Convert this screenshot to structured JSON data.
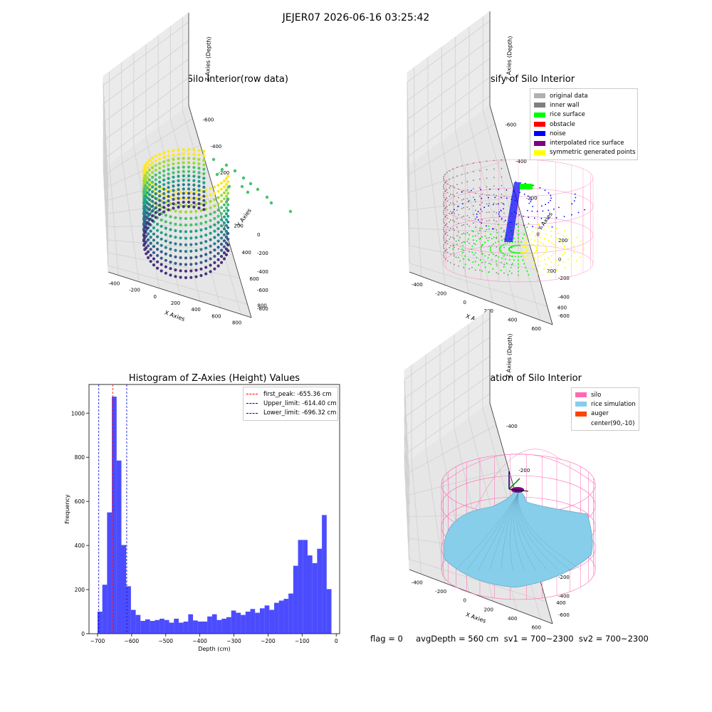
{
  "suptitle": "JEJER07 2026-06-16 03:25:42",
  "footer": "flag = 0     avgDepth = 560 cm  sv1 = 700~2300  sv2 = 700~2300",
  "colors": {
    "hist_bar": "#0000ff",
    "first_peak_line": "#ff0000",
    "limit_lines": "#0000cc",
    "silo_wire": "#ff69b4",
    "rice_surface": "#87ceeb",
    "auger": "#ff4500",
    "viridis": [
      "#fde725",
      "#a0da39",
      "#4ac16d",
      "#1fa187",
      "#277f8e",
      "#365c8d",
      "#46327e"
    ]
  },
  "chart_data": [
    {
      "type": "scatter",
      "projection": "3d",
      "title": "3D Plot of Silo Interior(row data)",
      "xlabel": "X Axies",
      "ylabel": "Y Axies",
      "zlabel": "Z Axies (Depth)",
      "x_ticks": [
        "-400",
        "-200",
        "0",
        "200",
        "400",
        "600",
        "800"
      ],
      "y_ticks": [
        "-600",
        "-400",
        "-200",
        "0",
        "200",
        "400",
        "600",
        "800"
      ],
      "z_ticks": [
        "0",
        "-200",
        "-400",
        "-600",
        "-800"
      ],
      "colormap": "viridis",
      "grid": true
    },
    {
      "type": "scatter",
      "projection": "3d",
      "title": "3D classify of Silo Interior",
      "xlabel": "X Axies",
      "ylabel": "Y Axies",
      "zlabel": "Z Axies (Depth)",
      "x_ticks": [
        "-400",
        "-200",
        "0",
        "200",
        "400",
        "600"
      ],
      "y_ticks": [
        "-600",
        "-400",
        "-200",
        "0",
        "200",
        "400"
      ],
      "z_ticks": [
        "200",
        "0",
        "-200",
        "-400",
        "-600"
      ],
      "legend": [
        {
          "label": "original data",
          "color": "#b0b0b0"
        },
        {
          "label": "inner wall",
          "color": "#808080"
        },
        {
          "label": "rice surface",
          "color": "#00ff00"
        },
        {
          "label": "obstacle",
          "color": "#ff0000"
        },
        {
          "label": "noise",
          "color": "#0000ff"
        },
        {
          "label": "interpolated rice surface",
          "color": "#800080"
        },
        {
          "label": "symmetric generated points",
          "color": "#ffff00"
        }
      ],
      "legend_position": "top-right",
      "grid": true
    },
    {
      "type": "bar",
      "title": "Histogram of Z-Axies (Height) Values",
      "xlabel": "Depth (cm)",
      "ylabel": "Frequency",
      "xlim": [
        -725,
        10
      ],
      "ylim": [
        0,
        1130
      ],
      "x_ticks": [
        -700,
        -600,
        -500,
        -400,
        -300,
        -200,
        -100,
        0
      ],
      "y_ticks": [
        0,
        200,
        400,
        600,
        800,
        1000
      ],
      "bin_edges": [
        -700,
        -686,
        -672,
        -658,
        -644,
        -630,
        -616,
        -602,
        -588,
        -574,
        -560,
        -546,
        -532,
        -518,
        -504,
        -490,
        -476,
        -462,
        -448,
        -434,
        -420,
        -406,
        -392,
        -378,
        -364,
        -350,
        -336,
        -322,
        -308,
        -294,
        -280,
        -266,
        -252,
        -238,
        -224,
        -210,
        -196,
        -182,
        -168,
        -154,
        -140,
        -126,
        -112,
        -98,
        -84,
        -70,
        -56,
        -42,
        -28,
        -14
      ],
      "values": [
        100,
        222,
        550,
        1075,
        785,
        402,
        215,
        108,
        85,
        58,
        65,
        58,
        62,
        68,
        62,
        50,
        68,
        50,
        55,
        88,
        60,
        55,
        55,
        78,
        88,
        62,
        68,
        75,
        105,
        95,
        85,
        100,
        112,
        95,
        115,
        128,
        108,
        140,
        150,
        158,
        182,
        308,
        425,
        425,
        355,
        320,
        385,
        538,
        202
      ],
      "reference_lines": [
        {
          "label": "first_peak: -655.36 cm",
          "x": -655.36,
          "color": "#ff0000"
        },
        {
          "label": "Upper_limit: -614.40 cm",
          "x": -614.4,
          "color": "#0000cc"
        },
        {
          "label": "Lower_limit: -696.32 cm",
          "x": -696.32,
          "color": "#0000cc"
        }
      ],
      "legend_position": "top-right",
      "grid": false
    },
    {
      "type": "surface",
      "projection": "3d",
      "title": "3D simulation of Silo Interior",
      "xlabel": "X Axies",
      "ylabel": "Y Axies",
      "zlabel": "Z Axies (Depth)",
      "x_ticks": [
        "-400",
        "-200",
        "0",
        "200",
        "400",
        "600"
      ],
      "y_ticks": [
        "-400",
        "-200",
        "0",
        "200",
        "400"
      ],
      "z_ticks": [
        "200",
        "0",
        "-200",
        "-400",
        "-600"
      ],
      "legend": [
        {
          "label": "silo",
          "color": "#ff69b4"
        },
        {
          "label": "rice simulation",
          "color": "#87ceeb"
        },
        {
          "label": "auger",
          "color": "#ff4500"
        },
        {
          "label": "center(90,-10)",
          "color": "#ffffff"
        }
      ],
      "legend_position": "top-right",
      "grid": true
    }
  ]
}
